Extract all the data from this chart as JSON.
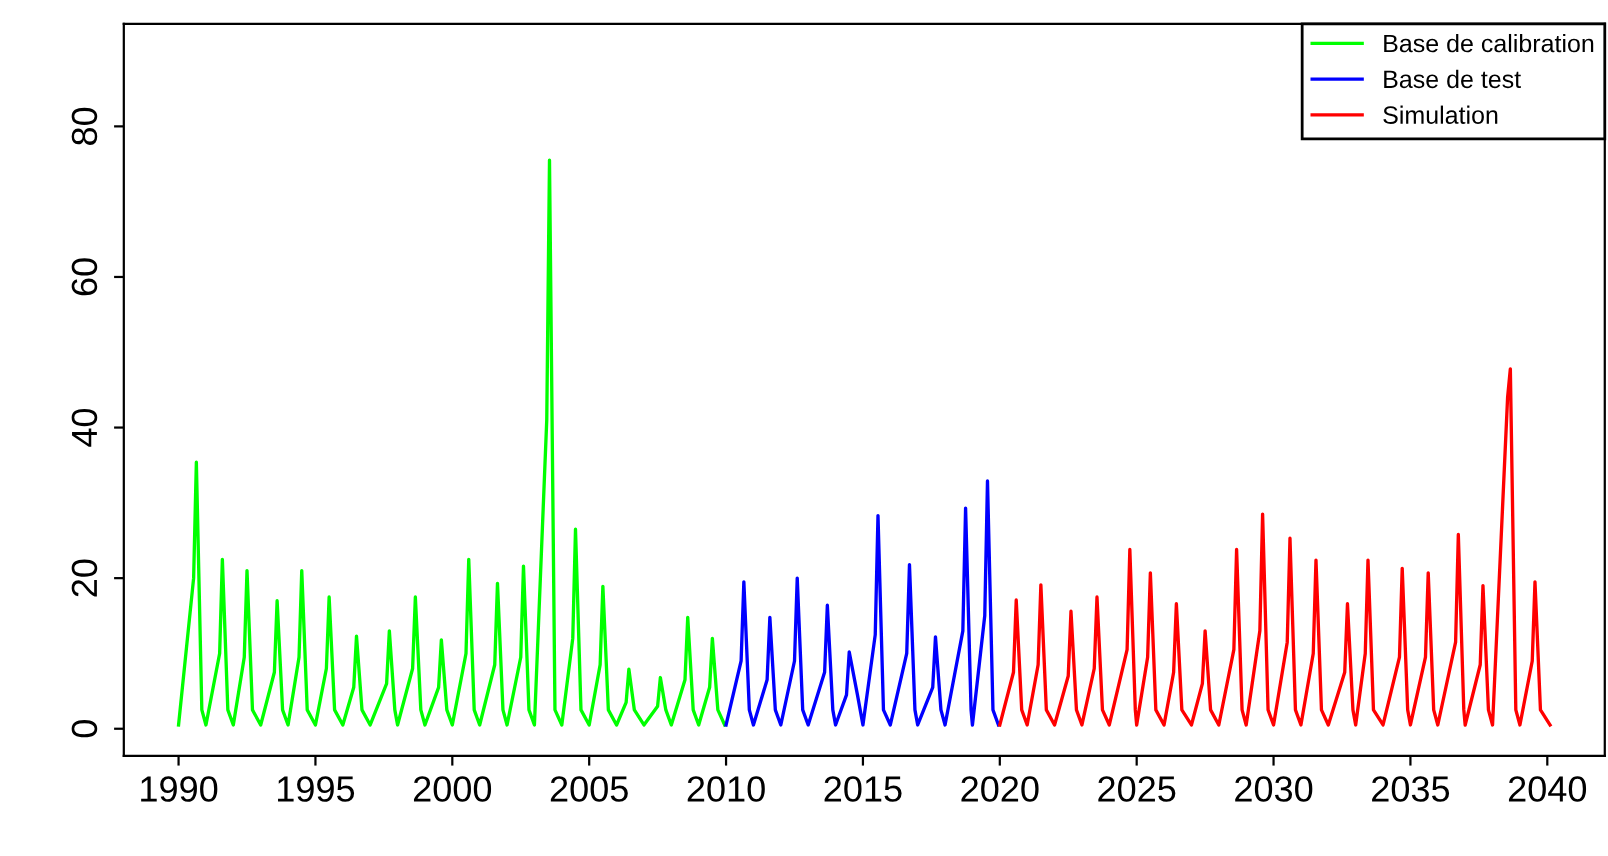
{
  "chart_data": {
    "type": "line",
    "xlim": [
      1988,
      2042.1
    ],
    "ylim": [
      -3.6,
      93.6
    ],
    "xticks": [
      1990,
      1995,
      2000,
      2005,
      2010,
      2015,
      2020,
      2025,
      2030,
      2035,
      2040
    ],
    "yticks": [
      0,
      20,
      40,
      60,
      80
    ],
    "grid": false,
    "legend": "top right",
    "marker": "none",
    "line_style": "solid",
    "series": [
      {
        "name": "Base de calibration",
        "color": "#00ff00",
        "x": [
          1990.0,
          1990.55,
          1990.65,
          1990.85,
          1991.0,
          1991.5,
          1991.6,
          1991.8,
          1992.0,
          1992.4,
          1992.5,
          1992.7,
          1993.0,
          1993.5,
          1993.6,
          1993.8,
          1994.0,
          1994.4,
          1994.5,
          1994.7,
          1995.0,
          1995.4,
          1995.5,
          1995.7,
          1996.0,
          1996.4,
          1996.5,
          1996.7,
          1997.0,
          1997.6,
          1997.7,
          1997.9,
          1998.0,
          1998.55,
          1998.65,
          1998.85,
          1999.0,
          1999.5,
          1999.6,
          1999.8,
          2000.0,
          2000.5,
          2000.6,
          2000.8,
          2001.0,
          2001.55,
          2001.65,
          2001.85,
          2002.0,
          2002.5,
          2002.6,
          2002.8,
          2003.0,
          2003.45,
          2003.55,
          2003.75,
          2004.0,
          2004.4,
          2004.5,
          2004.7,
          2005.0,
          2005.4,
          2005.5,
          2005.7,
          2006.0,
          2006.35,
          2006.45,
          2006.65,
          2007.0,
          2007.5,
          2007.6,
          2007.8,
          2008.0,
          2008.5,
          2008.6,
          2008.8,
          2009.0,
          2009.4,
          2009.5,
          2009.7,
          2009.95
        ],
        "values": [
          0.5,
          20,
          35.4,
          2.5,
          0.5,
          10,
          22.5,
          2.5,
          0.5,
          9.5,
          21,
          2.5,
          0.5,
          7.5,
          17,
          2.5,
          0.5,
          9.5,
          21,
          2.5,
          0.5,
          8,
          17.5,
          2.5,
          0.5,
          5.5,
          12.3,
          2.5,
          0.5,
          6,
          13,
          2.5,
          0.5,
          8,
          17.5,
          2.5,
          0.5,
          5.5,
          11.8,
          2.5,
          0.5,
          10,
          22.5,
          2.5,
          0.5,
          8.5,
          19.3,
          2.5,
          0.5,
          9.5,
          21.6,
          2.5,
          0.5,
          41,
          75.5,
          2.5,
          0.5,
          12,
          26.5,
          2.5,
          0.5,
          8.5,
          18.9,
          2.5,
          0.5,
          3.5,
          7.9,
          2.5,
          0.5,
          3,
          6.8,
          2.5,
          0.5,
          6.5,
          14.8,
          2.5,
          0.5,
          5.5,
          12,
          2.5,
          0.5
        ]
      },
      {
        "name": "Base de test",
        "color": "#0000ff",
        "x": [
          2010.0,
          2010.55,
          2010.65,
          2010.85,
          2011.0,
          2011.5,
          2011.6,
          2011.8,
          2012.0,
          2012.5,
          2012.6,
          2012.8,
          2013.0,
          2013.6,
          2013.7,
          2013.9,
          2014.0,
          2014.4,
          2014.5,
          2014.8,
          2015.0,
          2015.45,
          2015.55,
          2015.75,
          2016.0,
          2016.6,
          2016.7,
          2016.9,
          2017.0,
          2017.55,
          2017.65,
          2017.85,
          2018.0,
          2018.65,
          2018.75,
          2018.95,
          2019.0,
          2019.45,
          2019.55,
          2019.75,
          2019.95
        ],
        "values": [
          0.5,
          9,
          19.5,
          2.5,
          0.5,
          6.5,
          14.8,
          2.5,
          0.5,
          9,
          20,
          2.5,
          0.5,
          7.5,
          16.4,
          2.5,
          0.5,
          4.5,
          10.2,
          4.5,
          0.5,
          12.5,
          28.3,
          2.5,
          0.5,
          10,
          21.8,
          2.5,
          0.5,
          5.5,
          12.2,
          2.5,
          0.5,
          13,
          29.3,
          2.5,
          0.5,
          15,
          32.9,
          2.5,
          0.5
        ]
      },
      {
        "name": "Simulation",
        "color": "#ff0000",
        "x": [
          2020.0,
          2020.5,
          2020.6,
          2020.8,
          2021.0,
          2021.4,
          2021.5,
          2021.7,
          2022.0,
          2022.5,
          2022.6,
          2022.8,
          2023.0,
          2023.45,
          2023.55,
          2023.75,
          2024.0,
          2024.65,
          2024.75,
          2024.95,
          2025.0,
          2025.4,
          2025.5,
          2025.7,
          2026.0,
          2026.35,
          2026.45,
          2026.65,
          2027.0,
          2027.4,
          2027.5,
          2027.7,
          2028.0,
          2028.55,
          2028.65,
          2028.85,
          2029.0,
          2029.5,
          2029.6,
          2029.8,
          2030.0,
          2030.5,
          2030.6,
          2030.8,
          2031.0,
          2031.45,
          2031.55,
          2031.75,
          2032.0,
          2032.6,
          2032.7,
          2032.9,
          2033.0,
          2033.35,
          2033.45,
          2033.65,
          2034.0,
          2034.6,
          2034.7,
          2034.9,
          2035.0,
          2035.55,
          2035.65,
          2035.85,
          2036.0,
          2036.65,
          2036.75,
          2036.95,
          2037.0,
          2037.55,
          2037.65,
          2037.85,
          2038.0,
          2038.55,
          2038.65,
          2038.85,
          2039.0,
          2039.45,
          2039.55,
          2039.75,
          2040.1
        ],
        "values": [
          0.5,
          7.5,
          17.1,
          2.5,
          0.5,
          8.5,
          19.1,
          2.5,
          0.5,
          7,
          15.6,
          2.5,
          0.5,
          8,
          17.5,
          2.5,
          0.5,
          10.5,
          23.8,
          2.5,
          0.5,
          9.5,
          20.7,
          2.5,
          0.5,
          7.5,
          16.6,
          2.5,
          0.5,
          6,
          13,
          2.5,
          0.5,
          10.5,
          23.8,
          2.5,
          0.5,
          13,
          28.5,
          2.5,
          0.5,
          11.5,
          25.3,
          2.5,
          0.5,
          10,
          22.4,
          2.5,
          0.5,
          7.5,
          16.6,
          2.5,
          0.5,
          10,
          22.4,
          2.5,
          0.5,
          9.5,
          21.3,
          2.5,
          0.5,
          9.5,
          20.7,
          2.5,
          0.5,
          11.5,
          25.8,
          2.5,
          0.5,
          8.5,
          19,
          2.5,
          0.5,
          44,
          47.8,
          2.5,
          0.5,
          9,
          19.5,
          2.5,
          0.5
        ]
      }
    ]
  }
}
